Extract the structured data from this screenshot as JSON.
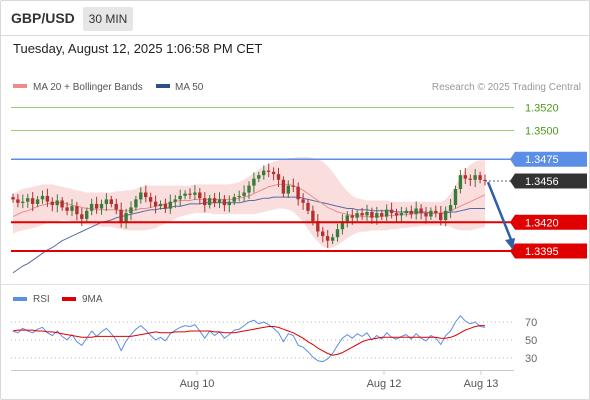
{
  "header": {
    "symbol": "GBP/USD",
    "timeframe": "30 MIN",
    "timestamp": "Tuesday, August 12, 2025 1:06:58 PM CET"
  },
  "legend": {
    "ma20_label": "MA 20 + Bollinger Bands",
    "ma50_label": "MA 50",
    "watermark": "Research © 2025 Trading Central"
  },
  "rsi_legend": {
    "rsi_label": "RSI",
    "ma_label": "9MA"
  },
  "colors": {
    "up_candle": "#3a7a3a",
    "down_candle": "#b23030",
    "bollinger_fill": "#f9d6d6",
    "ma20": "#f08a8a",
    "ma50": "#5a6aa8",
    "resistance_green": "#9acc73",
    "resistance_blue": "#5b8ee6",
    "support_red": "#e00000",
    "current_price_bg": "#333333",
    "arrow": "#2e5fa8",
    "rsi_line": "#5b8ee6",
    "rsi_ma": "#e00000"
  },
  "chart_data": [
    {
      "type": "candlestick",
      "title": "",
      "x_ticks": [
        "Aug 10",
        "Aug 12",
        "Aug 13"
      ],
      "y_range": [
        1.3375,
        1.353
      ],
      "levels": [
        {
          "label": "1.3520",
          "value": 1.352,
          "style": "resistance"
        },
        {
          "label": "1.3500",
          "value": 1.35,
          "style": "resistance"
        },
        {
          "label": "1.3475",
          "value": 1.3475,
          "style": "pivot"
        },
        {
          "label": "1.3456",
          "value": 1.3456,
          "style": "current"
        },
        {
          "label": "1.3420",
          "value": 1.342,
          "style": "support"
        },
        {
          "label": "1.3395",
          "value": 1.3395,
          "style": "support"
        }
      ],
      "projection": {
        "from": 1.3455,
        "to": 1.3395
      },
      "closes": [
        1.344,
        1.3437,
        1.3438,
        1.3441,
        1.3436,
        1.344,
        1.3443,
        1.3438,
        1.3435,
        1.3439,
        1.3433,
        1.343,
        1.3434,
        1.3427,
        1.3423,
        1.343,
        1.3436,
        1.3432,
        1.3436,
        1.344,
        1.3436,
        1.3431,
        1.342,
        1.3428,
        1.3433,
        1.344,
        1.3446,
        1.3442,
        1.3438,
        1.3434,
        1.3436,
        1.3432,
        1.3438,
        1.344,
        1.3443,
        1.3445,
        1.3444,
        1.3446,
        1.3441,
        1.3435,
        1.3441,
        1.3437,
        1.344,
        1.3435,
        1.3438,
        1.3442,
        1.3443,
        1.3446,
        1.3452,
        1.3458,
        1.3461,
        1.3465,
        1.3464,
        1.3462,
        1.3457,
        1.3445,
        1.3452,
        1.3451,
        1.344,
        1.3437,
        1.343,
        1.3421,
        1.3412,
        1.3408,
        1.3404,
        1.3407,
        1.3414,
        1.3421,
        1.3426,
        1.3424,
        1.3428,
        1.3426,
        1.3429,
        1.3424,
        1.3428,
        1.3425,
        1.3431,
        1.3428,
        1.3426,
        1.3428,
        1.343,
        1.3427,
        1.3432,
        1.3428,
        1.3425,
        1.343,
        1.3428,
        1.3422,
        1.343,
        1.3435,
        1.3449,
        1.3461,
        1.3458,
        1.3457,
        1.3461,
        1.3457,
        1.3456
      ],
      "ma20": [
        1.3425,
        1.3427,
        1.3429,
        1.343,
        1.3432,
        1.3434,
        1.3435,
        1.3436,
        1.3437,
        1.3437,
        1.3437,
        1.3436,
        1.3435,
        1.3434,
        1.3433,
        1.3432,
        1.3432,
        1.3431,
        1.3431,
        1.3431,
        1.3431,
        1.3431,
        1.343,
        1.343,
        1.343,
        1.3431,
        1.3432,
        1.3432,
        1.3433,
        1.3434,
        1.3435,
        1.3436,
        1.3437,
        1.3438,
        1.3439,
        1.3439,
        1.3439,
        1.344,
        1.344,
        1.344,
        1.344,
        1.344,
        1.344,
        1.344,
        1.344,
        1.344,
        1.3441,
        1.3442,
        1.3443,
        1.3445,
        1.3447,
        1.3449,
        1.3451,
        1.3452,
        1.3453,
        1.3453,
        1.3453,
        1.3452,
        1.345,
        1.3448,
        1.3445,
        1.3442,
        1.3439,
        1.3436,
        1.3433,
        1.3431,
        1.3429,
        1.3428,
        1.3427,
        1.3426,
        1.3426,
        1.3425,
        1.3425,
        1.3425,
        1.3425,
        1.3425,
        1.3426,
        1.3426,
        1.3426,
        1.3427,
        1.3427,
        1.3427,
        1.3428,
        1.3428,
        1.3428,
        1.3428,
        1.3428,
        1.3428,
        1.3429,
        1.343,
        1.3432,
        1.3434,
        1.3436,
        1.3438,
        1.344,
        1.3442,
        1.3444
      ],
      "bollinger_upper": [
        1.3445,
        1.3447,
        1.3449,
        1.345,
        1.3451,
        1.3452,
        1.3453,
        1.3453,
        1.3453,
        1.3452,
        1.3451,
        1.345,
        1.3449,
        1.3448,
        1.3447,
        1.3446,
        1.3446,
        1.3446,
        1.3446,
        1.3446,
        1.3446,
        1.3447,
        1.3447,
        1.3448,
        1.3448,
        1.3449,
        1.3451,
        1.3452,
        1.3452,
        1.3452,
        1.3452,
        1.3452,
        1.3452,
        1.3452,
        1.3452,
        1.3452,
        1.3452,
        1.3453,
        1.3453,
        1.3453,
        1.3453,
        1.3453,
        1.3453,
        1.3453,
        1.3453,
        1.3454,
        1.3455,
        1.3457,
        1.346,
        1.3463,
        1.3466,
        1.3469,
        1.3471,
        1.3473,
        1.3474,
        1.3475,
        1.3476,
        1.3476,
        1.3477,
        1.3477,
        1.3477,
        1.3476,
        1.3475,
        1.3473,
        1.3469,
        1.3464,
        1.3458,
        1.3452,
        1.3447,
        1.3443,
        1.3441,
        1.344,
        1.3439,
        1.3439,
        1.3439,
        1.3439,
        1.3439,
        1.3438,
        1.3438,
        1.3438,
        1.3438,
        1.3438,
        1.3438,
        1.3438,
        1.3438,
        1.3438,
        1.3438,
        1.3438,
        1.344,
        1.3445,
        1.3452,
        1.346,
        1.3466,
        1.347,
        1.3473,
        1.3474,
        1.3474
      ],
      "bollinger_lower": [
        1.341,
        1.3412,
        1.3413,
        1.3414,
        1.3415,
        1.3416,
        1.3418,
        1.3419,
        1.342,
        1.3421,
        1.3422,
        1.3422,
        1.3421,
        1.342,
        1.3419,
        1.3418,
        1.3417,
        1.3417,
        1.3416,
        1.3416,
        1.3416,
        1.3415,
        1.3414,
        1.3413,
        1.3413,
        1.3413,
        1.3413,
        1.3413,
        1.3414,
        1.3415,
        1.3417,
        1.3419,
        1.3421,
        1.3423,
        1.3425,
        1.3426,
        1.3427,
        1.3428,
        1.3428,
        1.3428,
        1.3428,
        1.3427,
        1.3427,
        1.3427,
        1.3427,
        1.3427,
        1.3427,
        1.3427,
        1.3427,
        1.3427,
        1.3428,
        1.3429,
        1.343,
        1.3431,
        1.3432,
        1.3432,
        1.3431,
        1.3429,
        1.3425,
        1.342,
        1.3414,
        1.3408,
        1.3403,
        1.3399,
        1.3397,
        1.3398,
        1.34,
        1.3403,
        1.3406,
        1.3409,
        1.3411,
        1.3412,
        1.3412,
        1.3413,
        1.3413,
        1.3413,
        1.3413,
        1.3414,
        1.3414,
        1.3415,
        1.3415,
        1.3416,
        1.3416,
        1.3417,
        1.3417,
        1.3417,
        1.3417,
        1.3417,
        1.3417,
        1.3416,
        1.3414,
        1.3413,
        1.3413,
        1.3413,
        1.3414,
        1.3415,
        1.3416
      ],
      "ma50": [
        1.3376,
        1.3379,
        1.3382,
        1.3384,
        1.3387,
        1.339,
        1.3393,
        1.3396,
        1.3398,
        1.3401,
        1.3404,
        1.3406,
        1.3408,
        1.341,
        1.3412,
        1.3414,
        1.3416,
        1.3418,
        1.342,
        1.3421,
        1.3422,
        1.3424,
        1.3425,
        1.3426,
        1.3427,
        1.3428,
        1.3429,
        1.343,
        1.3431,
        1.3431,
        1.3432,
        1.3432,
        1.3433,
        1.3434,
        1.3434,
        1.3435,
        1.3436,
        1.3436,
        1.3436,
        1.3437,
        1.3437,
        1.3437,
        1.3437,
        1.3437,
        1.3437,
        1.3437,
        1.3437,
        1.3438,
        1.3439,
        1.3439,
        1.344,
        1.3441,
        1.3441,
        1.3442,
        1.3442,
        1.3442,
        1.3442,
        1.3442,
        1.3442,
        1.3441,
        1.344,
        1.3439,
        1.3438,
        1.3437,
        1.3436,
        1.3435,
        1.3434,
        1.3433,
        1.3432,
        1.3432,
        1.3431,
        1.3431,
        1.3431,
        1.343,
        1.343,
        1.343,
        1.343,
        1.343,
        1.3429,
        1.3429,
        1.3429,
        1.3429,
        1.3429,
        1.3429,
        1.3429,
        1.3428,
        1.3428,
        1.3428,
        1.3428,
        1.3429,
        1.3429,
        1.343,
        1.3431,
        1.3432,
        1.3432,
        1.3432,
        1.3432
      ]
    },
    {
      "type": "line",
      "y_ticks": [
        70,
        50,
        30
      ],
      "y_range": [
        20,
        80
      ],
      "series": [
        {
          "name": "RSI",
          "values": [
            60,
            58,
            63,
            60,
            58,
            62,
            64,
            58,
            55,
            60,
            54,
            50,
            56,
            48,
            44,
            52,
            60,
            54,
            59,
            63,
            57,
            50,
            38,
            49,
            56,
            62,
            66,
            61,
            55,
            50,
            53,
            49,
            57,
            61,
            64,
            66,
            65,
            67,
            60,
            52,
            60,
            55,
            59,
            52,
            56,
            61,
            62,
            66,
            70,
            72,
            68,
            70,
            67,
            63,
            58,
            48,
            57,
            55,
            44,
            42,
            37,
            31,
            27,
            26,
            29,
            35,
            44,
            52,
            56,
            52,
            57,
            54,
            58,
            50,
            55,
            51,
            58,
            53,
            51,
            54,
            56,
            51,
            57,
            52,
            49,
            55,
            52,
            45,
            55,
            60,
            70,
            77,
            71,
            68,
            70,
            65,
            64
          ]
        },
        {
          "name": "9MA",
          "values": [
            60,
            61,
            61,
            61,
            61,
            60,
            60,
            59,
            59,
            58,
            57,
            56,
            55,
            54,
            53,
            53,
            53,
            54,
            54,
            54,
            54,
            54,
            54,
            54,
            54,
            55,
            56,
            57,
            58,
            59,
            58,
            58,
            58,
            59,
            59,
            59,
            60,
            60,
            60,
            60,
            60,
            59,
            59,
            58,
            58,
            58,
            59,
            60,
            61,
            62,
            63,
            64,
            65,
            65,
            64,
            62,
            60,
            58,
            55,
            52,
            48,
            45,
            41,
            38,
            35,
            33,
            34,
            36,
            39,
            42,
            45,
            48,
            50,
            51,
            52,
            53,
            53,
            53,
            53,
            53,
            53,
            53,
            53,
            53,
            53,
            53,
            53,
            52,
            52,
            53,
            55,
            58,
            61,
            63,
            65,
            66,
            66
          ]
        }
      ]
    }
  ]
}
